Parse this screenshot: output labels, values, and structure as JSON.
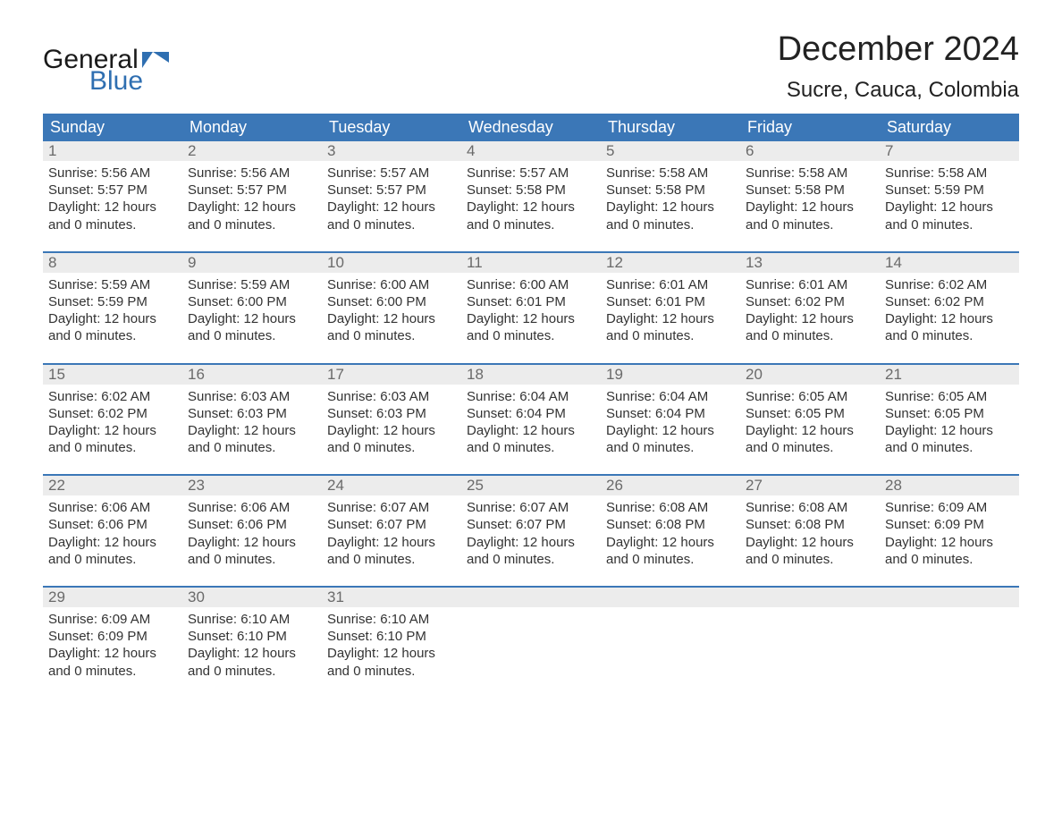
{
  "colors": {
    "page_bg": "#ffffff",
    "header_blue": "#3b77b7",
    "row_separator": "#3b77b7",
    "daynum_bg": "#ececec",
    "text_dark": "#333333",
    "logo_blue": "#2f6fb1",
    "logo_navy": "#1a1a1a"
  },
  "typography": {
    "month_title_fontsize": 38,
    "location_fontsize": 24,
    "weekday_fontsize": 18,
    "daynum_fontsize": 17,
    "body_fontsize": 15,
    "font_family": "Arial"
  },
  "logo": {
    "line1": "General",
    "line2": "Blue"
  },
  "title": {
    "month": "December 2024",
    "location": "Sucre, Cauca, Colombia"
  },
  "weekdays": [
    "Sunday",
    "Monday",
    "Tuesday",
    "Wednesday",
    "Thursday",
    "Friday",
    "Saturday"
  ],
  "weeks": [
    [
      {
        "n": "1",
        "sunrise": "Sunrise: 5:56 AM",
        "sunset": "Sunset: 5:57 PM",
        "daylight": "Daylight: 12 hours and 0 minutes."
      },
      {
        "n": "2",
        "sunrise": "Sunrise: 5:56 AM",
        "sunset": "Sunset: 5:57 PM",
        "daylight": "Daylight: 12 hours and 0 minutes."
      },
      {
        "n": "3",
        "sunrise": "Sunrise: 5:57 AM",
        "sunset": "Sunset: 5:57 PM",
        "daylight": "Daylight: 12 hours and 0 minutes."
      },
      {
        "n": "4",
        "sunrise": "Sunrise: 5:57 AM",
        "sunset": "Sunset: 5:58 PM",
        "daylight": "Daylight: 12 hours and 0 minutes."
      },
      {
        "n": "5",
        "sunrise": "Sunrise: 5:58 AM",
        "sunset": "Sunset: 5:58 PM",
        "daylight": "Daylight: 12 hours and 0 minutes."
      },
      {
        "n": "6",
        "sunrise": "Sunrise: 5:58 AM",
        "sunset": "Sunset: 5:58 PM",
        "daylight": "Daylight: 12 hours and 0 minutes."
      },
      {
        "n": "7",
        "sunrise": "Sunrise: 5:58 AM",
        "sunset": "Sunset: 5:59 PM",
        "daylight": "Daylight: 12 hours and 0 minutes."
      }
    ],
    [
      {
        "n": "8",
        "sunrise": "Sunrise: 5:59 AM",
        "sunset": "Sunset: 5:59 PM",
        "daylight": "Daylight: 12 hours and 0 minutes."
      },
      {
        "n": "9",
        "sunrise": "Sunrise: 5:59 AM",
        "sunset": "Sunset: 6:00 PM",
        "daylight": "Daylight: 12 hours and 0 minutes."
      },
      {
        "n": "10",
        "sunrise": "Sunrise: 6:00 AM",
        "sunset": "Sunset: 6:00 PM",
        "daylight": "Daylight: 12 hours and 0 minutes."
      },
      {
        "n": "11",
        "sunrise": "Sunrise: 6:00 AM",
        "sunset": "Sunset: 6:01 PM",
        "daylight": "Daylight: 12 hours and 0 minutes."
      },
      {
        "n": "12",
        "sunrise": "Sunrise: 6:01 AM",
        "sunset": "Sunset: 6:01 PM",
        "daylight": "Daylight: 12 hours and 0 minutes."
      },
      {
        "n": "13",
        "sunrise": "Sunrise: 6:01 AM",
        "sunset": "Sunset: 6:02 PM",
        "daylight": "Daylight: 12 hours and 0 minutes."
      },
      {
        "n": "14",
        "sunrise": "Sunrise: 6:02 AM",
        "sunset": "Sunset: 6:02 PM",
        "daylight": "Daylight: 12 hours and 0 minutes."
      }
    ],
    [
      {
        "n": "15",
        "sunrise": "Sunrise: 6:02 AM",
        "sunset": "Sunset: 6:02 PM",
        "daylight": "Daylight: 12 hours and 0 minutes."
      },
      {
        "n": "16",
        "sunrise": "Sunrise: 6:03 AM",
        "sunset": "Sunset: 6:03 PM",
        "daylight": "Daylight: 12 hours and 0 minutes."
      },
      {
        "n": "17",
        "sunrise": "Sunrise: 6:03 AM",
        "sunset": "Sunset: 6:03 PM",
        "daylight": "Daylight: 12 hours and 0 minutes."
      },
      {
        "n": "18",
        "sunrise": "Sunrise: 6:04 AM",
        "sunset": "Sunset: 6:04 PM",
        "daylight": "Daylight: 12 hours and 0 minutes."
      },
      {
        "n": "19",
        "sunrise": "Sunrise: 6:04 AM",
        "sunset": "Sunset: 6:04 PM",
        "daylight": "Daylight: 12 hours and 0 minutes."
      },
      {
        "n": "20",
        "sunrise": "Sunrise: 6:05 AM",
        "sunset": "Sunset: 6:05 PM",
        "daylight": "Daylight: 12 hours and 0 minutes."
      },
      {
        "n": "21",
        "sunrise": "Sunrise: 6:05 AM",
        "sunset": "Sunset: 6:05 PM",
        "daylight": "Daylight: 12 hours and 0 minutes."
      }
    ],
    [
      {
        "n": "22",
        "sunrise": "Sunrise: 6:06 AM",
        "sunset": "Sunset: 6:06 PM",
        "daylight": "Daylight: 12 hours and 0 minutes."
      },
      {
        "n": "23",
        "sunrise": "Sunrise: 6:06 AM",
        "sunset": "Sunset: 6:06 PM",
        "daylight": "Daylight: 12 hours and 0 minutes."
      },
      {
        "n": "24",
        "sunrise": "Sunrise: 6:07 AM",
        "sunset": "Sunset: 6:07 PM",
        "daylight": "Daylight: 12 hours and 0 minutes."
      },
      {
        "n": "25",
        "sunrise": "Sunrise: 6:07 AM",
        "sunset": "Sunset: 6:07 PM",
        "daylight": "Daylight: 12 hours and 0 minutes."
      },
      {
        "n": "26",
        "sunrise": "Sunrise: 6:08 AM",
        "sunset": "Sunset: 6:08 PM",
        "daylight": "Daylight: 12 hours and 0 minutes."
      },
      {
        "n": "27",
        "sunrise": "Sunrise: 6:08 AM",
        "sunset": "Sunset: 6:08 PM",
        "daylight": "Daylight: 12 hours and 0 minutes."
      },
      {
        "n": "28",
        "sunrise": "Sunrise: 6:09 AM",
        "sunset": "Sunset: 6:09 PM",
        "daylight": "Daylight: 12 hours and 0 minutes."
      }
    ],
    [
      {
        "n": "29",
        "sunrise": "Sunrise: 6:09 AM",
        "sunset": "Sunset: 6:09 PM",
        "daylight": "Daylight: 12 hours and 0 minutes."
      },
      {
        "n": "30",
        "sunrise": "Sunrise: 6:10 AM",
        "sunset": "Sunset: 6:10 PM",
        "daylight": "Daylight: 12 hours and 0 minutes."
      },
      {
        "n": "31",
        "sunrise": "Sunrise: 6:10 AM",
        "sunset": "Sunset: 6:10 PM",
        "daylight": "Daylight: 12 hours and 0 minutes."
      },
      {
        "empty": true
      },
      {
        "empty": true
      },
      {
        "empty": true
      },
      {
        "empty": true
      }
    ]
  ]
}
